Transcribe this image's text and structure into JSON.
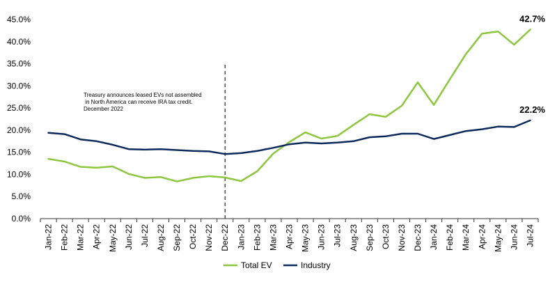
{
  "chart_data": {
    "type": "line",
    "categories": [
      "Jan-22",
      "Feb-22",
      "Mar-22",
      "Apr-22",
      "May-22",
      "Jun-22",
      "Jul-22",
      "Aug-22",
      "Sep-22",
      "Oct-22",
      "Nov-22",
      "Dec-22",
      "Jan-23",
      "Feb-23",
      "Mar-23",
      "Apr-23",
      "May-23",
      "Jun-23",
      "Jul-23",
      "Aug-23",
      "Sep-23",
      "Oct-23",
      "Nov-23",
      "Dec-23",
      "Jan-24",
      "Feb-24",
      "Mar-24",
      "Apr-24",
      "May-24",
      "Jun-24",
      "Jul-24"
    ],
    "series": [
      {
        "name": "Total EV",
        "color": "#8DC63F",
        "values": [
          13.5,
          12.9,
          11.7,
          11.5,
          11.8,
          10.1,
          9.2,
          9.4,
          8.4,
          9.2,
          9.6,
          9.3,
          8.5,
          10.7,
          14.7,
          17.3,
          19.5,
          18.1,
          18.7,
          21.2,
          23.6,
          23.0,
          25.5,
          30.8,
          25.7,
          31.5,
          37.2,
          41.8,
          42.3,
          39.3,
          42.7
        ],
        "end_label": "42.7%"
      },
      {
        "name": "Industry",
        "color": "#0B2A5B",
        "values": [
          19.4,
          19.1,
          17.9,
          17.5,
          16.7,
          15.7,
          15.6,
          15.7,
          15.5,
          15.3,
          15.2,
          14.6,
          14.8,
          15.3,
          16.0,
          16.8,
          17.2,
          17.0,
          17.2,
          17.5,
          18.4,
          18.6,
          19.2,
          19.2,
          18.0,
          18.9,
          19.8,
          20.2,
          20.8,
          20.7,
          22.2
        ],
        "end_label": "22.2%"
      }
    ],
    "y_ticks": [
      "0.0%",
      "5.0%",
      "10.0%",
      "15.0%",
      "20.0%",
      "25.0%",
      "30.0%",
      "35.0%",
      "40.0%",
      "45.0%"
    ],
    "ylim": [
      0,
      45
    ],
    "grid": false,
    "legend_position": "bottom-center",
    "vertical_marker": {
      "category": "Dec-22",
      "style": "dashed",
      "annotation": [
        "Treasury announces leased EVs not assembled",
        " in North America can receive IRA tax credit.",
        "December 2022"
      ]
    }
  }
}
